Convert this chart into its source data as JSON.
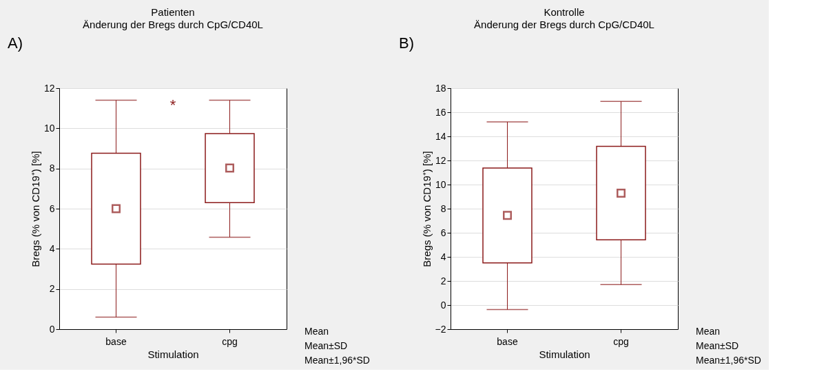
{
  "chart_data": [
    {
      "type": "box",
      "title": "Patienten",
      "subtitle": "Änderung der Bregs durch CpG/CD40L",
      "xlabel": "Stimulation",
      "ylabel": "Bregs (% von CD19⁺) [%]",
      "categories": [
        "base",
        "cpg"
      ],
      "color": "#8b1a1a",
      "boxes": [
        {
          "low": 0.6,
          "q1": 3.24,
          "mean": 6.0,
          "q3": 8.76,
          "high": 11.4
        },
        {
          "low": 4.58,
          "q1": 6.3,
          "mean": 8.02,
          "q3": 9.74,
          "high": 11.4
        }
      ],
      "ylim": [
        0,
        12
      ],
      "yticks": [
        0,
        2,
        4,
        6,
        8,
        10,
        12
      ],
      "grid": "y",
      "annotations": [
        "A)",
        "Mean",
        "Mean±SD",
        "Mean±1,96*SD",
        "*"
      ]
    },
    {
      "type": "box",
      "title": "Kontrolle",
      "subtitle": "Änderung der Bregs durch CpG/CD40L",
      "xlabel": "Stimulation",
      "ylabel": "Bregs (% von CD19⁺) [%]",
      "categories": [
        "base",
        "cpg"
      ],
      "color": "#8b1a1a",
      "boxes": [
        {
          "low": -0.37,
          "q1": 3.5,
          "mean": 7.44,
          "q3": 11.37,
          "high": 15.2
        },
        {
          "low": 1.7,
          "q1": 5.42,
          "mean": 9.29,
          "q3": 13.17,
          "high": 16.9
        }
      ],
      "ylim": [
        -2,
        18
      ],
      "yticks": [
        -2,
        0,
        2,
        4,
        6,
        8,
        10,
        12,
        14,
        16,
        18
      ],
      "grid": "y",
      "annotations": [
        "B)",
        "Mean",
        "Mean±SD",
        "Mean±1,96*SD"
      ]
    }
  ]
}
